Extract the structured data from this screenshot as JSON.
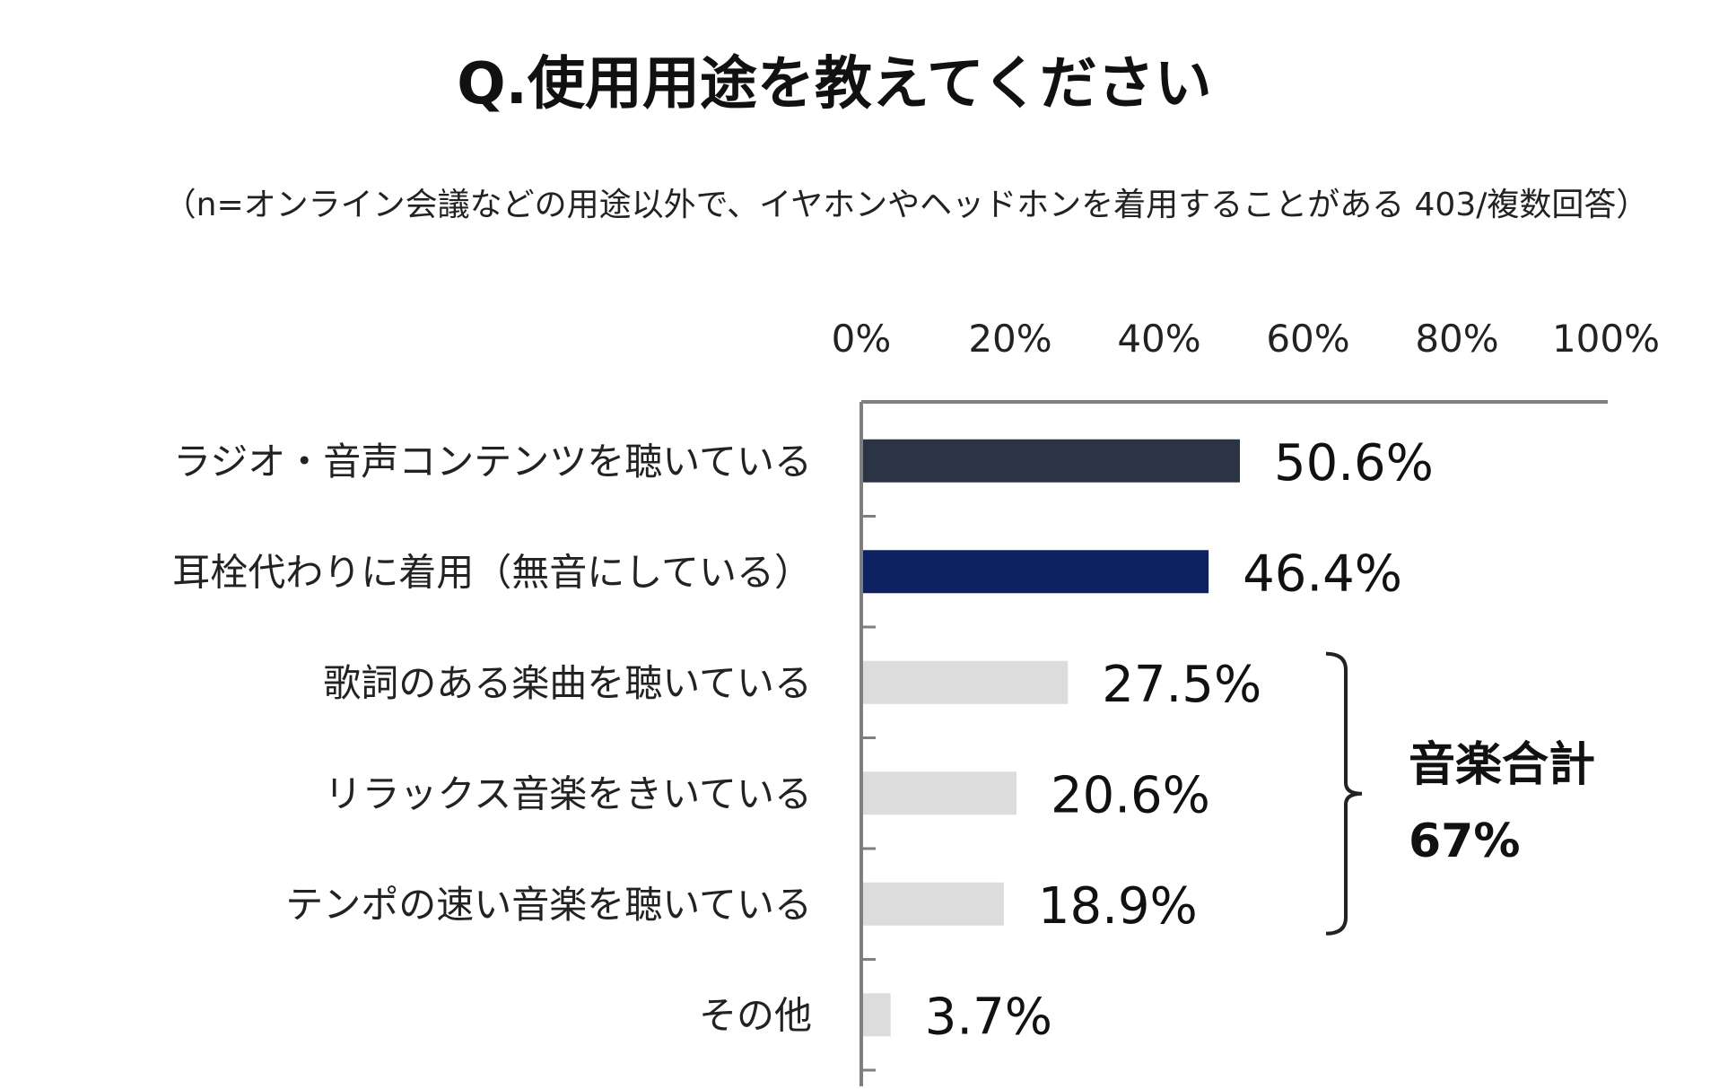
{
  "chart_data": {
    "type": "bar",
    "orientation": "horizontal",
    "title": "Q.使用用途を教えてください",
    "subtitle": "（n=オンライン会議などの用途以外で、イヤホンやヘッドホンを着用することがある 403/複数回答）",
    "categories": [
      "ラジオ・音声コンテンツを聴いている",
      "耳栓代わりに着用（無音にしている）",
      "歌詞のある楽曲を聴いている",
      "リラックス音楽をきいている",
      "テンポの速い音楽を聴いている",
      "その他"
    ],
    "values": [
      50.6,
      46.4,
      27.5,
      20.6,
      18.9,
      3.7
    ],
    "value_labels": [
      "50.6%",
      "46.4%",
      "27.5%",
      "20.6%",
      "18.9%",
      "3.7%"
    ],
    "bar_colors": [
      "#2b3445",
      "#0e2160",
      "#dcdcdc",
      "#dcdcdc",
      "#dcdcdc",
      "#dcdcdc"
    ],
    "xlim": [
      0,
      100
    ],
    "x_ticks": [
      "0%",
      "20%",
      "40%",
      "60%",
      "80%",
      "100%"
    ],
    "x_tick_values": [
      0,
      20,
      40,
      60,
      80,
      100
    ],
    "axis_position": "top",
    "grid": false,
    "bracket": {
      "from_category": 2,
      "to_category": 4,
      "label_line1": "音楽合計",
      "label_line2": "67%"
    }
  }
}
